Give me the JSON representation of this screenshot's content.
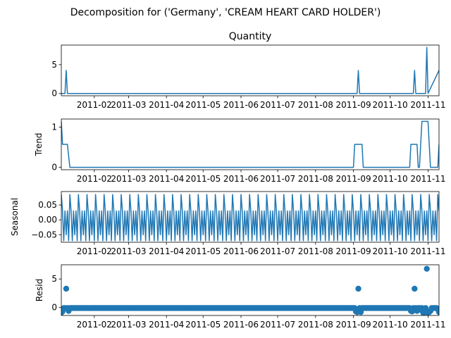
{
  "suptitle": "Decomposition for ('Germany', 'CREAM HEART CARD HOLDER')",
  "chart_data": [
    {
      "type": "line",
      "panel": "observed",
      "title": "Quantity",
      "ylabel": "",
      "ylim": [
        -0.4,
        8.4
      ],
      "yticks": [
        0,
        5
      ],
      "series": [
        {
          "x": [
            "2011-01-05",
            "2011-01-08",
            "2011-01-09",
            "2011-01-10",
            "2011-09-04",
            "2011-09-05",
            "2011-09-06",
            "2011-10-20",
            "2011-10-21",
            "2011-10-22",
            "2011-10-30",
            "2011-10-31",
            "2011-11-01",
            "2011-11-10"
          ],
          "values": [
            0,
            0,
            4,
            0,
            0,
            4,
            0,
            0,
            4,
            0,
            0,
            8,
            0,
            4
          ]
        }
      ]
    },
    {
      "type": "line",
      "panel": "trend",
      "title": "",
      "ylabel": "Trend",
      "ylim": [
        -0.06,
        1.2
      ],
      "yticks": [
        0,
        1
      ],
      "series": [
        {
          "x": [
            "2011-01-05",
            "2011-01-06",
            "2011-01-07",
            "2011-01-08",
            "2011-01-09",
            "2011-01-10",
            "2011-01-11",
            "2011-01-12",
            "2011-09-01",
            "2011-09-02",
            "2011-09-03",
            "2011-09-04",
            "2011-09-05",
            "2011-09-06",
            "2011-09-07",
            "2011-09-08",
            "2011-09-09",
            "2011-10-17",
            "2011-10-18",
            "2011-10-19",
            "2011-10-20",
            "2011-10-21",
            "2011-10-22",
            "2011-10-23",
            "2011-10-24",
            "2011-10-25",
            "2011-10-26",
            "2011-10-27",
            "2011-10-28",
            "2011-10-29",
            "2011-10-30",
            "2011-10-31",
            "2011-11-01",
            "2011-11-02",
            "2011-11-03",
            "2011-11-04",
            "2011-11-05",
            "2011-11-06",
            "2011-11-07",
            "2011-11-08",
            "2011-11-09",
            "2011-11-10"
          ],
          "values": [
            1.14,
            0.57,
            0.57,
            0.57,
            0.57,
            0.57,
            0.28,
            0,
            0,
            0.57,
            0.57,
            0.57,
            0.57,
            0.57,
            0.57,
            0.57,
            0,
            0,
            0.57,
            0.57,
            0.57,
            0.57,
            0.57,
            0.57,
            0,
            0,
            0.57,
            1.14,
            1.14,
            1.14,
            1.14,
            1.14,
            1.14,
            0.57,
            0,
            0,
            0,
            0,
            0,
            0,
            0,
            0.57
          ]
        }
      ]
    },
    {
      "type": "line",
      "panel": "seasonal",
      "title": "",
      "ylabel": "Seasonal",
      "ylim": [
        -0.075,
        0.095
      ],
      "yticks": [
        -0.05,
        0.0,
        0.05
      ],
      "yticklabels": [
        "−0.05",
        "0.00",
        "0.05"
      ],
      "period_days": 7,
      "weekly_pattern": [
        0.085,
        0.03,
        -0.07,
        0.03,
        -0.05,
        0.03,
        -0.07
      ],
      "start": "2011-01-05",
      "end": "2011-11-10"
    },
    {
      "type": "scatter",
      "panel": "resid",
      "title": "",
      "ylabel": "Resid",
      "ylim": [
        -1.4,
        7.5
      ],
      "yticks": [
        0,
        5
      ],
      "baseline": -0.1,
      "start": "2011-01-05",
      "end": "2011-11-10",
      "outliers": [
        {
          "x": "2011-01-05",
          "y": -0.9
        },
        {
          "x": "2011-01-06",
          "y": -0.7
        },
        {
          "x": "2011-01-09",
          "y": 3.3
        },
        {
          "x": "2011-01-11",
          "y": -0.6
        },
        {
          "x": "2011-09-03",
          "y": -0.7
        },
        {
          "x": "2011-09-04",
          "y": -0.8
        },
        {
          "x": "2011-09-05",
          "y": 3.3
        },
        {
          "x": "2011-09-07",
          "y": -0.8
        },
        {
          "x": "2011-10-18",
          "y": -0.6
        },
        {
          "x": "2011-10-19",
          "y": -0.7
        },
        {
          "x": "2011-10-21",
          "y": 3.3
        },
        {
          "x": "2011-10-23",
          "y": -0.6
        },
        {
          "x": "2011-10-26",
          "y": -0.4
        },
        {
          "x": "2011-10-28",
          "y": -0.9
        },
        {
          "x": "2011-10-29",
          "y": -0.9
        },
        {
          "x": "2011-10-31",
          "y": 6.8
        },
        {
          "x": "2011-11-01",
          "y": -0.9
        },
        {
          "x": "2011-11-02",
          "y": -0.8
        },
        {
          "x": "2011-11-03",
          "y": -0.6
        },
        {
          "x": "2011-11-09",
          "y": -0.3
        },
        {
          "x": "2011-11-10",
          "y": -0.8
        }
      ]
    }
  ],
  "x_axis": {
    "range": [
      "2011-01-05",
      "2011-11-10"
    ],
    "ticks": [
      "2011-02-01",
      "2011-03-01",
      "2011-04-01",
      "2011-05-01",
      "2011-06-01",
      "2011-07-01",
      "2011-08-01",
      "2011-09-01",
      "2011-10-01",
      "2011-11-01"
    ],
    "ticklabels": [
      "2011-02",
      "2011-03",
      "2011-04",
      "2011-05",
      "2011-06",
      "2011-07",
      "2011-08",
      "2011-09",
      "2011-10",
      "2011-11"
    ]
  },
  "colors": {
    "line": "#1f77b4",
    "axis": "#000000"
  }
}
